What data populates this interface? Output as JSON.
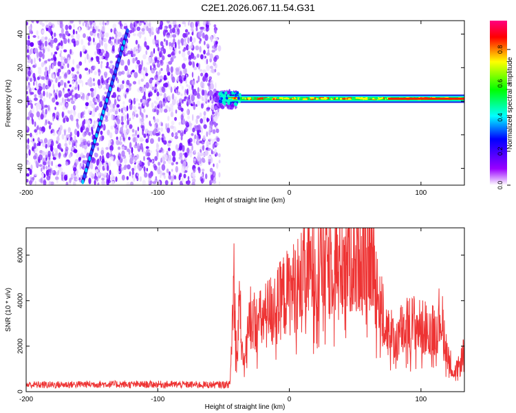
{
  "title": "C2E1.2026.067.11.54.G31",
  "chart_data": [
    {
      "type": "heatmap",
      "xlabel": "Height of straight line (km)",
      "ylabel": "Frequency (Hz)",
      "xlim": [
        -200,
        133
      ],
      "ylim": [
        -50,
        48
      ],
      "xticks": [
        -200,
        -100,
        0,
        100
      ],
      "yticks": [
        -40,
        -20,
        0,
        20,
        40
      ],
      "colorbar": {
        "label": "Normalized spectral amplitude",
        "range": [
          0,
          0.97
        ],
        "ticks": [
          0.0,
          0.2,
          0.4,
          0.6,
          0.8
        ],
        "colors": [
          "#ffffff",
          "#9900ff",
          "#0000ff",
          "#00ffff",
          "#00ff00",
          "#ffff00",
          "#ff0000",
          "#ff0080"
        ]
      },
      "noise_region_x": [
        -200,
        -53
      ],
      "features": [
        {
          "name": "diagonal streak",
          "x": [
            -157,
            -123
          ],
          "y": [
            -48,
            42
          ]
        },
        {
          "name": "carrier line",
          "x": [
            -53,
            133
          ],
          "y": [
            0,
            1.5
          ]
        }
      ]
    },
    {
      "type": "line",
      "xlabel": "Height of straight line (km)",
      "ylabel": "SNR (10 * v/v)",
      "xlim": [
        -200,
        133
      ],
      "ylim": [
        0,
        7200
      ],
      "xticks": [
        -200,
        -100,
        0,
        100
      ],
      "yticks": [
        0,
        2000,
        4000,
        6000
      ],
      "color": "#ee3333",
      "series": [
        {
          "x": [
            -200,
            -180,
            -160,
            -140,
            -120,
            -100,
            -80,
            -60,
            -45,
            -42,
            -40,
            -38,
            -35,
            -30,
            -25,
            -20,
            -15,
            -10,
            -5,
            0,
            10,
            20,
            30,
            40,
            50,
            55,
            58,
            60,
            65,
            70,
            75,
            80,
            85,
            90,
            95,
            100,
            105,
            110,
            115,
            120,
            125,
            130,
            133
          ],
          "y": [
            300,
            300,
            320,
            330,
            310,
            320,
            310,
            300,
            320,
            5200,
            1200,
            4200,
            900,
            3400,
            3000,
            3200,
            3600,
            3700,
            4200,
            4400,
            5000,
            5600,
            5800,
            6000,
            5900,
            6600,
            7000,
            6400,
            5200,
            3600,
            2800,
            2200,
            2700,
            2900,
            3000,
            2800,
            2800,
            2700,
            3400,
            1800,
            800,
            1200,
            2000
          ]
        }
      ]
    }
  ]
}
